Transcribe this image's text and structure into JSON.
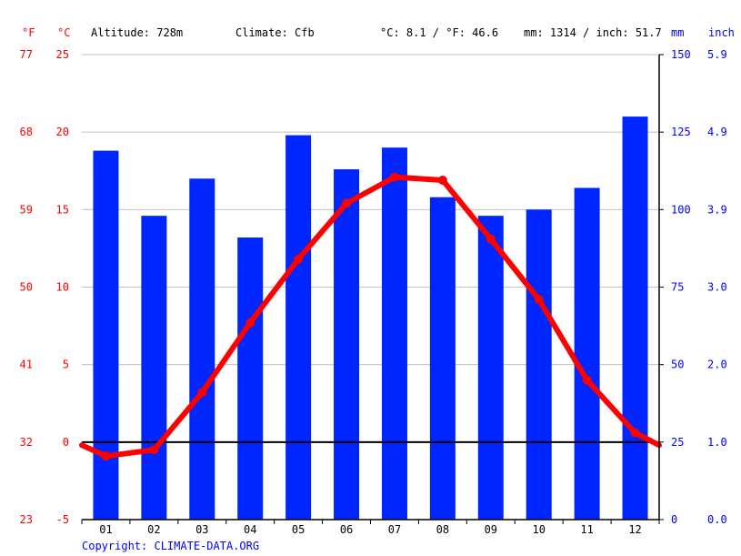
{
  "header": {
    "unit_f": "°F",
    "unit_c": "°C",
    "altitude": "Altitude: 728m",
    "climate": "Climate: Cfb",
    "temp_avg": "°C: 8.1 / °F: 46.6",
    "precip_total": "mm: 1314 / inch: 51.7",
    "unit_mm": "mm",
    "unit_inch": "inch"
  },
  "footer": {
    "copyright": "Copyright: CLIMATE-DATA.ORG"
  },
  "colors": {
    "bars": "#0026ff",
    "line": "#ff0000",
    "grid": "#c0c0c0",
    "zero_line": "#000000",
    "red_text": "#ff0000",
    "blue_text": "#0000ff"
  },
  "chart_data": {
    "type": "bar+line",
    "categories": [
      "01",
      "02",
      "03",
      "04",
      "05",
      "06",
      "07",
      "08",
      "09",
      "10",
      "11",
      "12"
    ],
    "series": [
      {
        "name": "Precipitation (mm)",
        "type": "bar",
        "axis": "right",
        "values": [
          119,
          98,
          110,
          91,
          124,
          113,
          120,
          104,
          98,
          100,
          107,
          130
        ]
      },
      {
        "name": "Temperature (°C)",
        "type": "line",
        "axis": "left",
        "values": [
          -0.9,
          -0.5,
          3.2,
          7.7,
          11.8,
          15.4,
          17.1,
          16.9,
          13.1,
          9.2,
          4.0,
          0.6
        ]
      }
    ],
    "left_axis_c": {
      "ticks": [
        "25",
        "20",
        "15",
        "10",
        "5",
        "0",
        "-5"
      ],
      "range": [
        -5,
        25
      ]
    },
    "left_axis_f": {
      "ticks": [
        "77",
        "68",
        "59",
        "50",
        "41",
        "32",
        "23"
      ]
    },
    "right_axis_mm": {
      "ticks": [
        "150",
        "125",
        "100",
        "75",
        "50",
        "25",
        "0"
      ],
      "range": [
        0,
        150
      ]
    },
    "right_axis_inch": {
      "ticks": [
        "5.9",
        "4.9",
        "3.9",
        "3.0",
        "2.0",
        "1.0",
        "0.0"
      ]
    },
    "line_start_value": -0.2,
    "line_end_value": -0.2,
    "grid": true
  }
}
